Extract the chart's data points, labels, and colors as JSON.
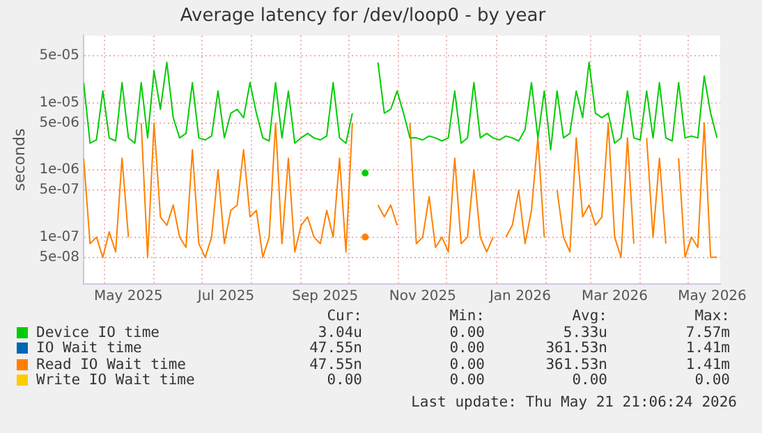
{
  "chart_data": {
    "type": "line",
    "title": "Average latency for /dev/loop0 - by year",
    "ylabel": "seconds",
    "log": "y",
    "grid": true,
    "legend": "bottom",
    "marker": "none",
    "x": [
      "2025-04-18",
      "2025-04-22",
      "2025-04-26",
      "2025-04-30",
      "2025-05-04",
      "2025-05-08",
      "2025-05-12",
      "2025-05-16",
      "2025-05-20",
      "2025-05-24",
      "2025-05-28",
      "2025-06-01",
      "2025-06-05",
      "2025-06-09",
      "2025-06-13",
      "2025-06-17",
      "2025-06-21",
      "2025-06-25",
      "2025-06-29",
      "2025-07-03",
      "2025-07-07",
      "2025-07-11",
      "2025-07-15",
      "2025-07-19",
      "2025-07-23",
      "2025-07-27",
      "2025-07-31",
      "2025-08-04",
      "2025-08-08",
      "2025-08-12",
      "2025-08-16",
      "2025-08-20",
      "2025-08-24",
      "2025-08-28",
      "2025-09-01",
      "2025-09-05",
      "2025-09-09",
      "2025-09-13",
      "2025-09-17",
      "2025-09-21",
      "2025-09-25",
      "2025-09-29",
      "2025-10-03",
      "2025-10-07",
      "2025-10-11",
      "2025-10-15",
      "2025-10-19",
      "2025-10-23",
      "2025-10-27",
      "2025-10-31",
      "2025-11-04",
      "2025-11-08",
      "2025-11-12",
      "2025-11-16",
      "2025-11-20",
      "2025-11-24",
      "2025-11-28",
      "2025-12-02",
      "2025-12-06",
      "2025-12-10",
      "2025-12-14",
      "2025-12-18",
      "2025-12-22",
      "2025-12-26",
      "2025-12-30",
      "2026-01-03",
      "2026-01-07",
      "2026-01-11",
      "2026-01-15",
      "2026-01-19",
      "2026-01-23",
      "2026-01-27",
      "2026-01-31",
      "2026-02-04",
      "2026-02-08",
      "2026-02-12",
      "2026-02-16",
      "2026-02-20",
      "2026-02-24",
      "2026-02-28",
      "2026-03-04",
      "2026-03-08",
      "2026-03-12",
      "2026-03-16",
      "2026-03-20",
      "2026-03-24",
      "2026-03-28",
      "2026-04-01",
      "2026-04-05",
      "2026-04-09",
      "2026-04-13",
      "2026-04-17",
      "2026-04-21",
      "2026-04-25",
      "2026-04-29",
      "2026-05-03",
      "2026-05-07",
      "2026-05-11",
      "2026-05-15",
      "2026-05-19"
    ],
    "xlim": [
      "2025-04-18",
      "2026-05-21"
    ],
    "xticks": [
      {
        "value": "2025-05-01",
        "label": null
      },
      {
        "value": "2025-05-16",
        "label": "May 2025"
      },
      {
        "value": "2025-06-01",
        "label": null
      },
      {
        "value": "2025-07-01",
        "label": null
      },
      {
        "value": "2025-07-16",
        "label": "Jul 2025"
      },
      {
        "value": "2025-08-01",
        "label": null
      },
      {
        "value": "2025-09-01",
        "label": null
      },
      {
        "value": "2025-09-16",
        "label": "Sep 2025"
      },
      {
        "value": "2025-10-01",
        "label": null
      },
      {
        "value": "2025-11-01",
        "label": null
      },
      {
        "value": "2025-11-16",
        "label": "Nov 2025"
      },
      {
        "value": "2025-12-01",
        "label": null
      },
      {
        "value": "2026-01-01",
        "label": null
      },
      {
        "value": "2026-01-16",
        "label": "Jan 2026"
      },
      {
        "value": "2026-02-01",
        "label": null
      },
      {
        "value": "2026-03-01",
        "label": null
      },
      {
        "value": "2026-03-16",
        "label": "Mar 2026"
      },
      {
        "value": "2026-04-01",
        "label": null
      },
      {
        "value": "2026-05-01",
        "label": null
      },
      {
        "value": "2026-05-16",
        "label": "May 2026"
      }
    ],
    "ylim": [
      2e-08,
      0.0001
    ],
    "yticks": [
      {
        "value": 5e-08,
        "label": "5e-08"
      },
      {
        "value": 1e-07,
        "label": "1e-07"
      },
      {
        "value": 5e-07,
        "label": "5e-07"
      },
      {
        "value": 1e-06,
        "label": "1e-06"
      },
      {
        "value": 5e-06,
        "label": "5e-06"
      },
      {
        "value": 1e-05,
        "label": "1e-05"
      },
      {
        "value": 5e-05,
        "label": "5e-05"
      }
    ],
    "series": [
      {
        "name": "Device IO time",
        "color": "#00cc00",
        "values": [
          2e-05,
          2.5e-06,
          2.8e-06,
          1.5e-05,
          3e-06,
          2.7e-06,
          2e-05,
          3e-06,
          2.5e-06,
          2e-05,
          3e-06,
          3e-05,
          8e-06,
          4e-05,
          6e-06,
          3e-06,
          3.5e-06,
          2e-05,
          3e-06,
          2.8e-06,
          3.2e-06,
          1.5e-05,
          3e-06,
          7e-06,
          8e-06,
          6e-06,
          2e-05,
          7e-06,
          3e-06,
          2.7e-06,
          2e-05,
          3e-06,
          1.5e-05,
          2.5e-06,
          3e-06,
          3.5e-06,
          3e-06,
          2.8e-06,
          3.2e-06,
          2e-05,
          3e-06,
          2.5e-06,
          7e-06,
          null,
          9e-07,
          null,
          4e-05,
          7e-06,
          8e-06,
          1.5e-05,
          7e-06,
          3e-06,
          3e-06,
          2.8e-06,
          3.2e-06,
          3e-06,
          2.7e-06,
          3e-06,
          1.5e-05,
          2.5e-06,
          3e-06,
          2e-05,
          3e-06,
          3.5e-06,
          3e-06,
          2.8e-06,
          3.2e-06,
          3e-06,
          2.7e-06,
          4e-06,
          2e-05,
          3e-06,
          1.5e-05,
          2e-06,
          1.5e-05,
          3e-06,
          3.5e-06,
          1.5e-05,
          6e-06,
          4e-05,
          7e-06,
          6e-06,
          7e-06,
          2.5e-06,
          3e-06,
          1.5e-05,
          3e-06,
          2.8e-06,
          1.5e-05,
          3e-06,
          2e-05,
          3e-06,
          2.7e-06,
          2e-05,
          3e-06,
          3.2e-06,
          3e-06,
          2.5e-05,
          7e-06,
          3e-06
        ]
      },
      {
        "name": "IO Wait time",
        "color": "#0066b3",
        "values": [
          null,
          null,
          null,
          null,
          null,
          null,
          null,
          null,
          null,
          null,
          null,
          null,
          null,
          null,
          null,
          null,
          null,
          null,
          null,
          null,
          null,
          null,
          null,
          null,
          null,
          null,
          null,
          null,
          null,
          null,
          null,
          null,
          null,
          null,
          null,
          null,
          null,
          null,
          null,
          null,
          null,
          null,
          null,
          null,
          null,
          null,
          null,
          null,
          null,
          null,
          null,
          null,
          null,
          null,
          null,
          null,
          null,
          null,
          null,
          null,
          null,
          null,
          null,
          null,
          null,
          null,
          null,
          null,
          null,
          null,
          null,
          null,
          null,
          null,
          null,
          null,
          null,
          null,
          null,
          null,
          null,
          null,
          null,
          null,
          null,
          null,
          null,
          null,
          null,
          null,
          null,
          null,
          null,
          null,
          null,
          null,
          null,
          null,
          null,
          null
        ]
      },
      {
        "name": "Read IO Wait time",
        "color": "#ff8000",
        "values": [
          1.5e-06,
          8e-08,
          1e-07,
          5e-08,
          1.2e-07,
          6e-08,
          1.5e-06,
          1e-07,
          null,
          5e-06,
          5e-08,
          5e-06,
          2e-07,
          1.5e-07,
          3e-07,
          1e-07,
          7e-08,
          2e-06,
          8e-08,
          5e-08,
          1e-07,
          1e-06,
          8e-08,
          2.5e-07,
          3e-07,
          2e-06,
          2e-07,
          2.5e-07,
          5e-08,
          1e-07,
          5e-06,
          8e-08,
          1.5e-06,
          6e-08,
          1.5e-07,
          2e-07,
          1e-07,
          8e-08,
          2.5e-07,
          1e-07,
          1.5e-06,
          6e-08,
          5e-06,
          null,
          1e-07,
          null,
          3e-07,
          2e-07,
          3e-07,
          1.5e-07,
          null,
          5e-06,
          8e-08,
          1e-07,
          4e-07,
          7e-08,
          1e-07,
          6e-08,
          1.5e-06,
          8e-08,
          1e-07,
          1e-06,
          1e-07,
          6e-08,
          1e-07,
          null,
          1e-07,
          1.5e-07,
          5e-07,
          8e-08,
          2.5e-07,
          3e-06,
          1e-07,
          null,
          5e-07,
          1e-07,
          6e-08,
          3e-06,
          2e-07,
          3e-07,
          1.5e-07,
          2e-07,
          5e-06,
          1e-07,
          5e-08,
          3e-06,
          8e-08,
          null,
          3e-06,
          1e-07,
          1.5e-06,
          8e-08,
          null,
          1.5e-06,
          5e-08,
          1e-07,
          7e-08,
          5e-06,
          5e-08,
          5e-08
        ]
      },
      {
        "name": "Write IO Wait time",
        "color": "#ffcc00",
        "values": [
          null,
          null,
          null,
          null,
          null,
          null,
          null,
          null,
          null,
          null,
          null,
          null,
          null,
          null,
          null,
          null,
          null,
          null,
          null,
          null,
          null,
          null,
          null,
          null,
          null,
          null,
          null,
          null,
          null,
          null,
          null,
          null,
          null,
          null,
          null,
          null,
          null,
          null,
          null,
          null,
          null,
          null,
          null,
          null,
          null,
          null,
          null,
          null,
          null,
          null,
          null,
          null,
          null,
          null,
          null,
          null,
          null,
          null,
          null,
          null,
          null,
          null,
          null,
          null,
          null,
          null,
          null,
          null,
          null,
          null,
          null,
          null,
          null,
          null,
          null,
          null,
          null,
          null,
          null,
          null,
          null,
          null,
          null,
          null,
          null,
          null,
          null,
          null,
          null,
          null,
          null,
          null,
          null,
          null,
          null,
          null,
          null,
          null,
          null,
          null
        ]
      }
    ],
    "annotations": [
      "Cur:",
      "Min:",
      "Avg:",
      "Max:",
      "3.04u",
      "0.00",
      "5.33u",
      "7.57m",
      "47.55n",
      "0.00",
      "361.53n",
      "1.41m",
      "47.55n",
      "0.00",
      "361.53n",
      "1.41m",
      "0.00",
      "0.00",
      "0.00",
      "0.00",
      "Last update: Thu May 21 21:06:24 2026"
    ]
  }
}
